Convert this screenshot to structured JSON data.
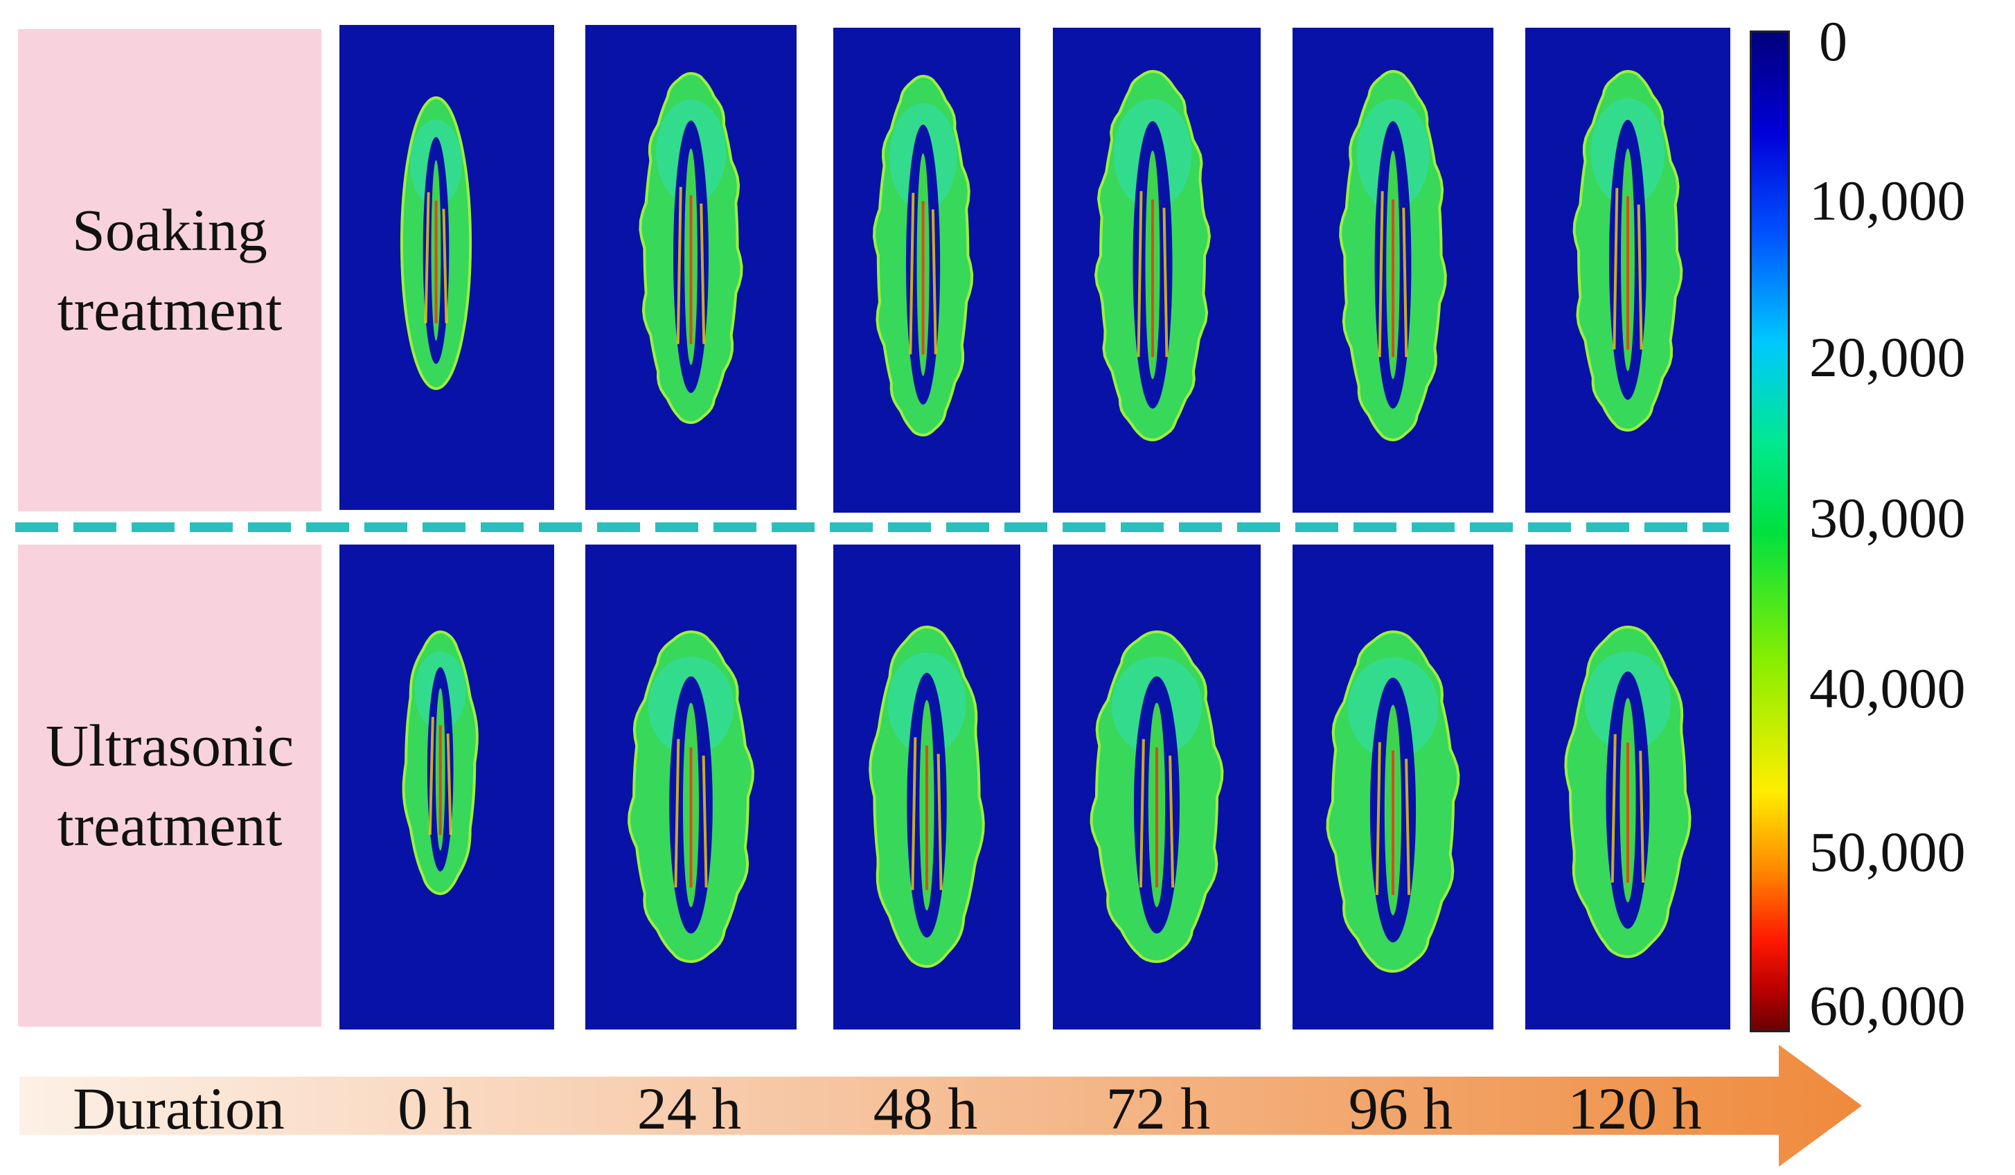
{
  "rows": [
    {
      "label_line1": "Soaking",
      "label_line2": "treatment"
    },
    {
      "label_line1": "Ultrasonic",
      "label_line2": "treatment"
    }
  ],
  "colorbar": {
    "ticks": [
      "0",
      "10,000",
      "20,000",
      "30,000",
      "40,000",
      "50,000",
      "60,000"
    ],
    "colors": [
      "#00007c",
      "#0000d8",
      "#00c8ff",
      "#00e040",
      "#ffee00",
      "#ff1800",
      "#6a0000"
    ]
  },
  "timeline": {
    "label": "Duration",
    "times": [
      "0 h",
      "24 h",
      "48 h",
      "72 h",
      "96 h",
      "120 h"
    ],
    "arrow_color": "#ef8a3c"
  },
  "colors": {
    "label_background": "#f8d3dd",
    "image_background": "#0812a6",
    "divider": "#29bfbf"
  }
}
